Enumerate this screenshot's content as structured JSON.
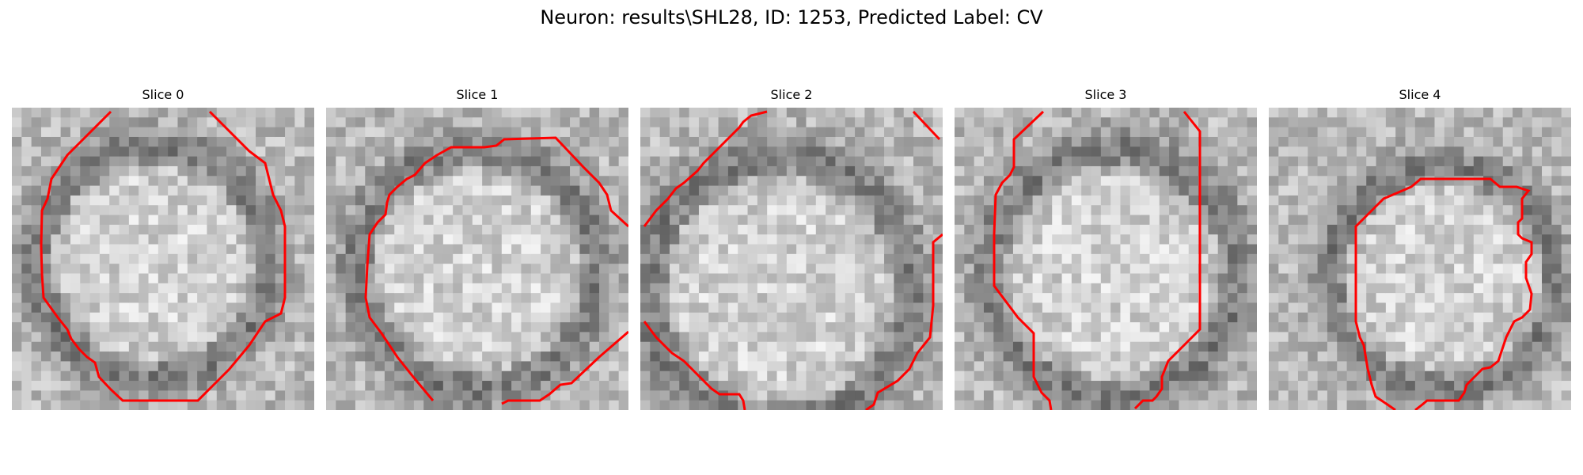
{
  "figure": {
    "title": "Neuron: results\\SHL28, ID: 1253, Predicted Label: CV"
  },
  "panels": [
    {
      "title": "Slice 0"
    },
    {
      "title": "Slice 1"
    },
    {
      "title": "Slice 2"
    },
    {
      "title": "Slice 3"
    },
    {
      "title": "Slice 4"
    }
  ],
  "colors": {
    "contour": "#ff0000",
    "background": "#ffffff"
  }
}
